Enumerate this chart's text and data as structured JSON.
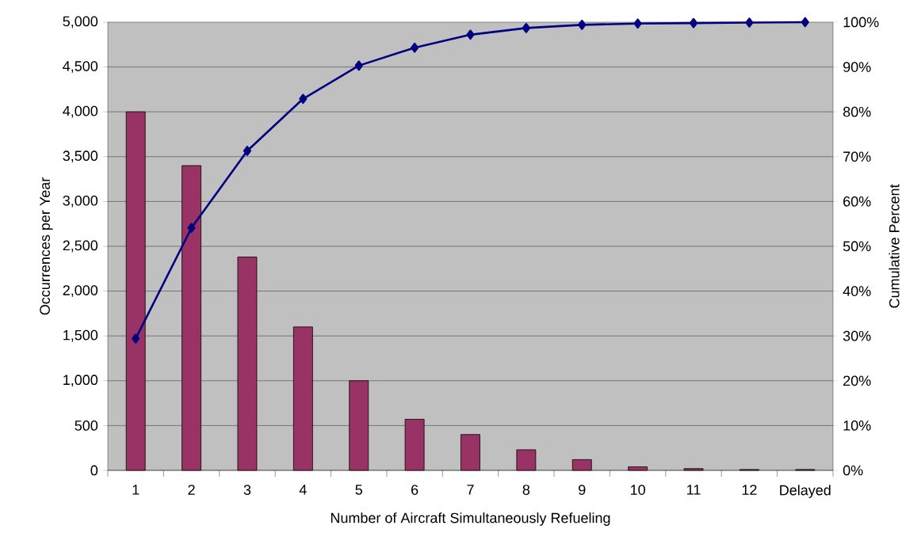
{
  "chart_data": {
    "type": "bar",
    "xlabel": "Number of Aircraft Simultaneously Refueling",
    "ylabel": "Occurrences per Year",
    "y2label": "Cumulative Percent",
    "categories": [
      "1",
      "2",
      "3",
      "4",
      "5",
      "6",
      "7",
      "8",
      "9",
      "10",
      "11",
      "12",
      "Delayed"
    ],
    "series": [
      {
        "color": "#993366",
        "values": [
          4000,
          3400,
          2380,
          1600,
          1000,
          570,
          400,
          230,
          120,
          40,
          20,
          10,
          10
        ]
      },
      {
        "type": "line",
        "axis": "y2",
        "color": "#000080",
        "marker": "diamond",
        "line_style": "solid",
        "values": [
          29.4,
          54.1,
          71.3,
          82.9,
          90.3,
          94.3,
          97.2,
          98.7,
          99.4,
          99.7,
          99.8,
          99.9,
          100
        ]
      }
    ],
    "ylim": [
      0,
      5000
    ],
    "yticks": [
      {
        "value": 0,
        "label": "0"
      },
      {
        "value": 500,
        "label": "500"
      },
      {
        "value": 1000,
        "label": "1,000"
      },
      {
        "value": 1500,
        "label": "1,500"
      },
      {
        "value": 2000,
        "label": "2,000"
      },
      {
        "value": 2500,
        "label": "2,500"
      },
      {
        "value": 3000,
        "label": "3,000"
      },
      {
        "value": 3500,
        "label": "3,500"
      },
      {
        "value": 4000,
        "label": "4,000"
      },
      {
        "value": 4500,
        "label": "4,500"
      },
      {
        "value": 5000,
        "label": "5,000"
      }
    ],
    "y2lim": [
      0,
      100
    ],
    "y2ticks": [
      {
        "value": 0,
        "label": "0%"
      },
      {
        "value": 10,
        "label": "10%"
      },
      {
        "value": 20,
        "label": "20%"
      },
      {
        "value": 30,
        "label": "30%"
      },
      {
        "value": 40,
        "label": "40%"
      },
      {
        "value": 50,
        "label": "50%"
      },
      {
        "value": 60,
        "label": "60%"
      },
      {
        "value": 70,
        "label": "70%"
      },
      {
        "value": 80,
        "label": "80%"
      },
      {
        "value": 90,
        "label": "90%"
      },
      {
        "value": 100,
        "label": "100%"
      }
    ],
    "grid": "y"
  }
}
